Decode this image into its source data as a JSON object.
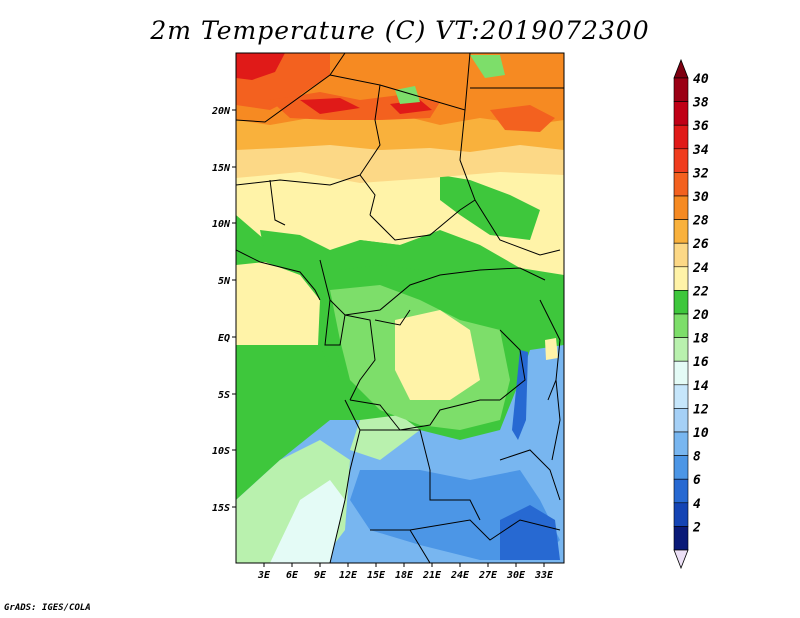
{
  "title": "2m Temperature (C) VT:2019072300",
  "credit": "GrADS: IGES/COLA",
  "lat_labels": [
    "20N",
    "15N",
    "10N",
    "5N",
    "EQ",
    "5S",
    "10S",
    "15S"
  ],
  "lon_labels": [
    "3E",
    "6E",
    "9E",
    "12E",
    "15E",
    "18E",
    "21E",
    "24E",
    "27E",
    "30E",
    "33E"
  ],
  "colorbar": {
    "labels": [
      "40",
      "38",
      "36",
      "34",
      "32",
      "30",
      "28",
      "26",
      "24",
      "22",
      "20",
      "18",
      "16",
      "14",
      "12",
      "10",
      "8",
      "6",
      "4",
      "2"
    ],
    "colors": [
      "#9b0015",
      "#c00016",
      "#e01a18",
      "#f03c1e",
      "#f3611f",
      "#f68a22",
      "#f9b13c",
      "#fcd886",
      "#fff3a8",
      "#3ec73c",
      "#7dde6a",
      "#b9f1ae",
      "#e4fbf6",
      "#c6e6fb",
      "#a5d0f6",
      "#78b6f0",
      "#4c96e6",
      "#2769d2",
      "#1444b4",
      "#0a1a78"
    ],
    "top_arrow": "#7e0011",
    "bottom_arrow": "#ece0f6"
  }
}
